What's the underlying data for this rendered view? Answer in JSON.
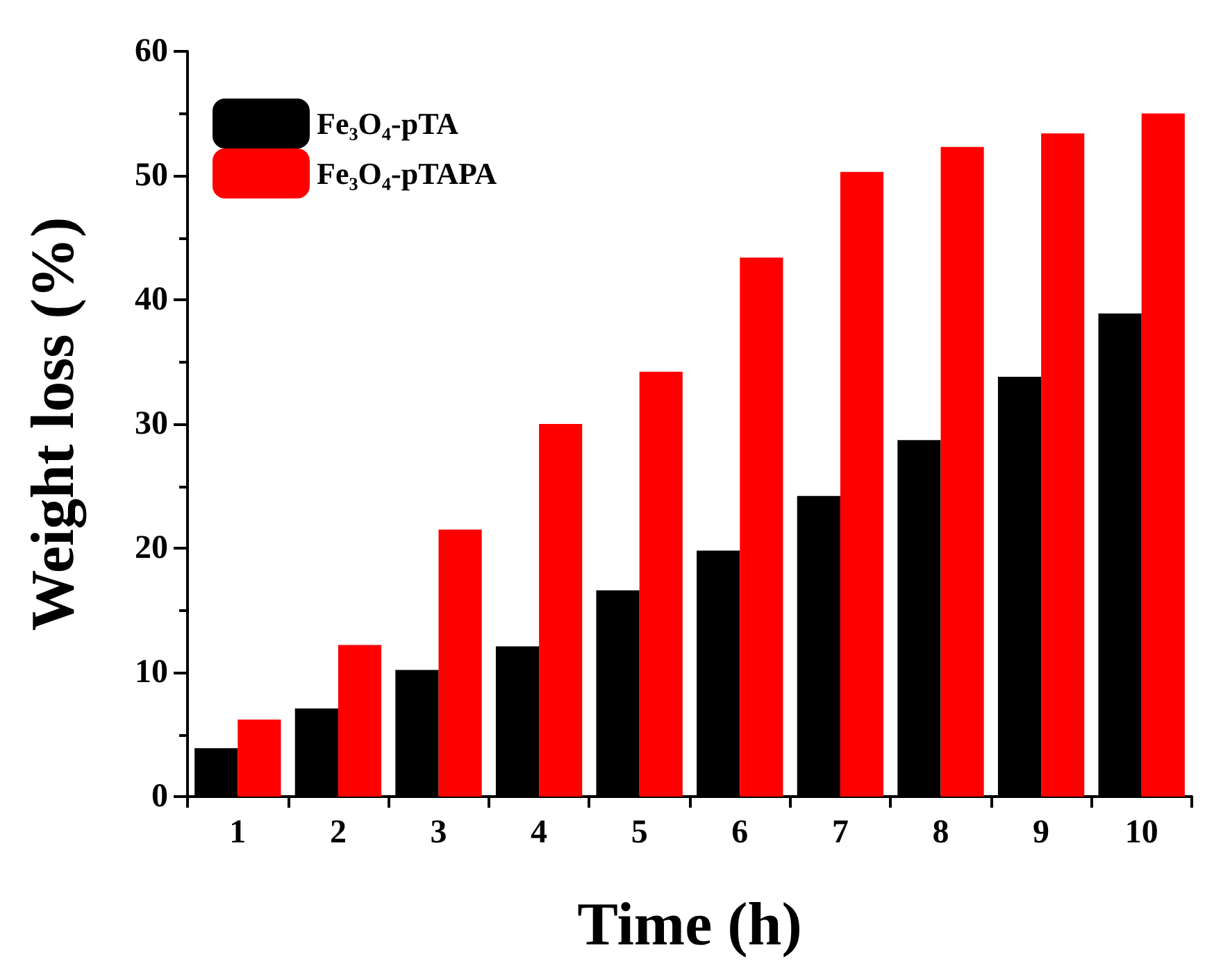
{
  "chart_data": {
    "type": "bar",
    "xlabel": "Time (h)",
    "ylabel": "Weight loss (%)",
    "categories": [
      "1",
      "2",
      "3",
      "4",
      "5",
      "6",
      "7",
      "8",
      "9",
      "10"
    ],
    "series": [
      {
        "name": "Fe₃O₄-pTA",
        "color": "#000000",
        "values": [
          3.9,
          7.1,
          10.2,
          12.1,
          16.6,
          19.8,
          24.2,
          28.7,
          33.8,
          38.9
        ]
      },
      {
        "name": "Fe₃O₄-pTAPA",
        "color": "#ff0000",
        "values": [
          6.2,
          12.2,
          21.5,
          30.0,
          34.2,
          43.4,
          50.3,
          52.3,
          53.4,
          55.0
        ]
      }
    ],
    "ylim": [
      0,
      60
    ],
    "yticks": [
      0,
      10,
      20,
      30,
      40,
      50,
      60
    ],
    "grid": false,
    "legend": "top left"
  }
}
